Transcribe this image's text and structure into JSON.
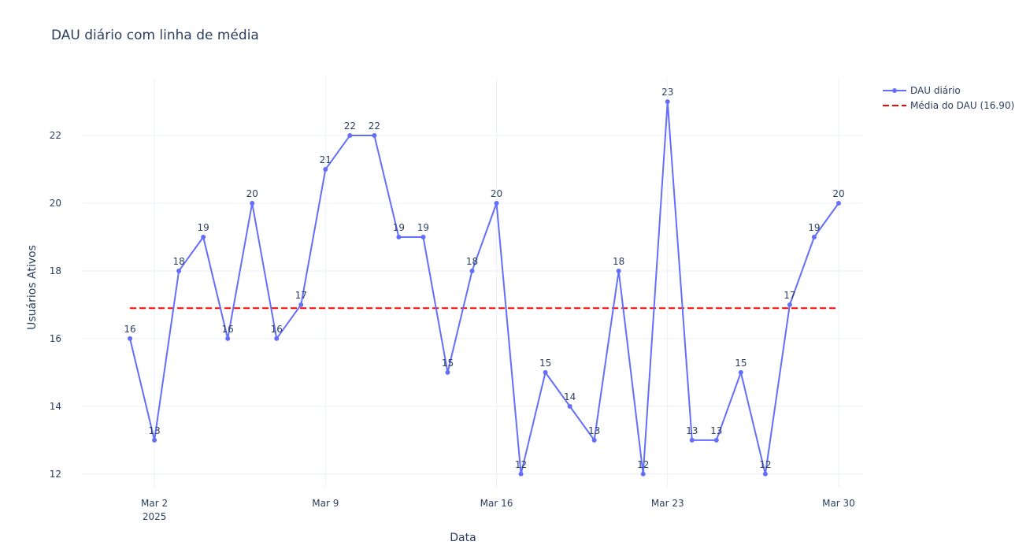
{
  "chart_data": {
    "type": "line",
    "title": "DAU diário com linha de média",
    "xlabel": "Data",
    "ylabel": "Usuários Ativos",
    "x": [
      "2025-03-01",
      "2025-03-02",
      "2025-03-03",
      "2025-03-04",
      "2025-03-05",
      "2025-03-06",
      "2025-03-07",
      "2025-03-08",
      "2025-03-09",
      "2025-03-10",
      "2025-03-11",
      "2025-03-12",
      "2025-03-13",
      "2025-03-14",
      "2025-03-15",
      "2025-03-16",
      "2025-03-17",
      "2025-03-18",
      "2025-03-19",
      "2025-03-20",
      "2025-03-21",
      "2025-03-22",
      "2025-03-23",
      "2025-03-24",
      "2025-03-25",
      "2025-03-26",
      "2025-03-27",
      "2025-03-28",
      "2025-03-29",
      "2025-03-30"
    ],
    "series": [
      {
        "name": "DAU diário",
        "mode": "lines+markers+text",
        "color": "#636efa",
        "values": [
          16,
          13,
          18,
          19,
          16,
          20,
          16,
          17,
          21,
          22,
          22,
          19,
          19,
          15,
          18,
          20,
          12,
          15,
          14,
          13,
          18,
          12,
          23,
          13,
          13,
          15,
          12,
          17,
          19,
          20
        ]
      },
      {
        "name": "Média do DAU (16.90)",
        "mode": "dashed-line",
        "color": "#ff0000",
        "values": [
          16.9,
          16.9,
          16.9,
          16.9,
          16.9,
          16.9,
          16.9,
          16.9,
          16.9,
          16.9,
          16.9,
          16.9,
          16.9,
          16.9,
          16.9,
          16.9,
          16.9,
          16.9,
          16.9,
          16.9,
          16.9,
          16.9,
          16.9,
          16.9,
          16.9,
          16.9,
          16.9,
          16.9,
          16.9,
          16.9
        ]
      }
    ],
    "x_ticks": [
      {
        "date": "2025-03-02",
        "label": "Mar 2",
        "sublabel": "2025"
      },
      {
        "date": "2025-03-09",
        "label": "Mar 9",
        "sublabel": ""
      },
      {
        "date": "2025-03-16",
        "label": "Mar 16",
        "sublabel": ""
      },
      {
        "date": "2025-03-23",
        "label": "Mar 23",
        "sublabel": ""
      },
      {
        "date": "2025-03-30",
        "label": "Mar 30",
        "sublabel": ""
      }
    ],
    "y_ticks": [
      12,
      14,
      16,
      18,
      20,
      22
    ],
    "ylim": [
      11.6,
      23.7
    ],
    "xlim": [
      "2025-02-27",
      "2025-03-31"
    ],
    "grid": true,
    "legend_position": "top-right"
  }
}
